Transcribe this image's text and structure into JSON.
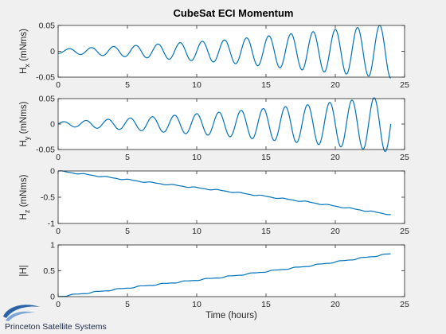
{
  "figure": {
    "title": "CubeSat ECI Momentum",
    "footer_text": "Princeton Satellite Systems",
    "logo_icon": "swoosh-logo-icon"
  },
  "colors": {
    "background": "#f0f0f0",
    "axes_bg": "#ffffff",
    "line": "#0072bd",
    "axis": "#262626",
    "logo": "#2a64a8"
  },
  "chart_data": [
    {
      "type": "line",
      "title": "",
      "xlabel": "",
      "ylabel_main": "H",
      "ylabel_sub": "x",
      "ylabel_unit": " (mNms)",
      "xlim": [
        0,
        25
      ],
      "ylim": [
        -0.05,
        0.05
      ],
      "xticks": [
        0,
        5,
        10,
        15,
        20,
        25
      ],
      "xtick_labels": [
        "0",
        "5",
        "10",
        "15",
        "20",
        "25"
      ],
      "yticks": [
        -0.05,
        0,
        0.05
      ],
      "ytick_labels": [
        "-0.05",
        "0",
        "0.05"
      ],
      "grid": false,
      "series": [
        {
          "kind": "oscillation",
          "x_range": [
            0,
            24
          ],
          "period_hours": 1.6,
          "phase_hours": 0.4,
          "amplitude_hours": [
            0,
            6,
            12,
            18,
            24
          ],
          "amplitude_values": [
            0.004,
            0.012,
            0.022,
            0.037,
            0.052
          ]
        }
      ]
    },
    {
      "type": "line",
      "title": "",
      "xlabel": "",
      "ylabel_main": "H",
      "ylabel_sub": "y",
      "ylabel_unit": " (mNms)",
      "xlim": [
        0,
        25
      ],
      "ylim": [
        -0.05,
        0.05
      ],
      "xticks": [
        0,
        5,
        10,
        15,
        20,
        25
      ],
      "xtick_labels": [
        "0",
        "5",
        "10",
        "15",
        "20",
        "25"
      ],
      "yticks": [
        -0.05,
        0,
        0.05
      ],
      "ytick_labels": [
        "-0.05",
        "0",
        "0.05"
      ],
      "grid": false,
      "series": [
        {
          "kind": "oscillation",
          "x_range": [
            0,
            24
          ],
          "period_hours": 1.6,
          "phase_hours": 0.0,
          "amplitude_hours": [
            0,
            6,
            12,
            18,
            24
          ],
          "amplitude_values": [
            0.004,
            0.013,
            0.024,
            0.038,
            0.055
          ]
        }
      ]
    },
    {
      "type": "line",
      "title": "",
      "xlabel": "",
      "ylabel_main": "H",
      "ylabel_sub": "z",
      "ylabel_unit": " (mNms)",
      "xlim": [
        0,
        25
      ],
      "ylim": [
        -1,
        0
      ],
      "xticks": [
        0,
        5,
        10,
        15,
        20,
        25
      ],
      "xtick_labels": [
        "0",
        "5",
        "10",
        "15",
        "20",
        "25"
      ],
      "yticks": [
        -1,
        -0.5,
        0
      ],
      "ytick_labels": [
        "-1",
        "-0.5",
        "0"
      ],
      "grid": false,
      "series": [
        {
          "kind": "staircase",
          "x_range": [
            0,
            24
          ],
          "period_hours": 1.6,
          "trend_x": [
            0,
            6,
            12,
            18,
            24
          ],
          "trend_y": [
            0,
            -0.2,
            -0.38,
            -0.59,
            -0.83
          ],
          "ripple": 0.012
        }
      ]
    },
    {
      "type": "line",
      "title": "",
      "xlabel": "Time (hours)",
      "ylabel_main": "|H|",
      "ylabel_sub": "",
      "ylabel_unit": "",
      "xlim": [
        0,
        25
      ],
      "ylim": [
        0,
        1
      ],
      "xticks": [
        0,
        5,
        10,
        15,
        20,
        25
      ],
      "xtick_labels": [
        "0",
        "5",
        "10",
        "15",
        "20",
        "25"
      ],
      "yticks": [
        0,
        0.5,
        1
      ],
      "ytick_labels": [
        "0",
        "0.5",
        "1"
      ],
      "grid": false,
      "series": [
        {
          "kind": "staircase",
          "x_range": [
            0,
            24
          ],
          "period_hours": 1.6,
          "trend_x": [
            0,
            6,
            12,
            18,
            24
          ],
          "trend_y": [
            0,
            0.2,
            0.38,
            0.59,
            0.83
          ],
          "ripple": 0.012
        }
      ]
    }
  ]
}
